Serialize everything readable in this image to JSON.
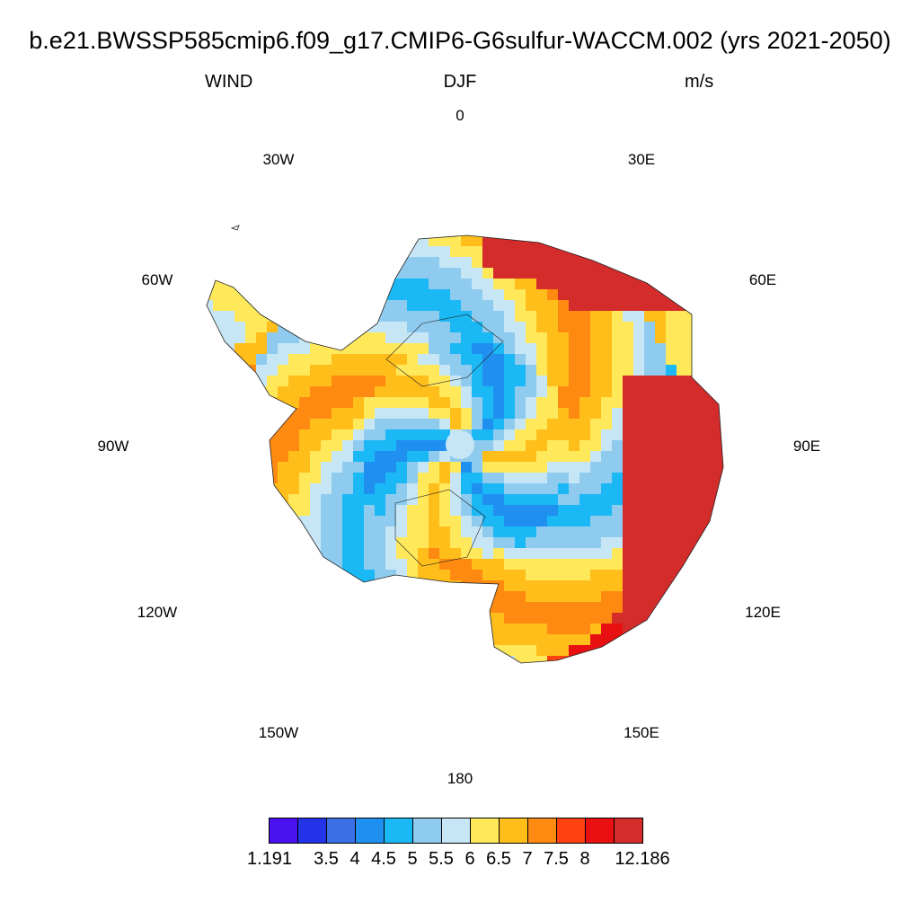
{
  "header": {
    "title": "b.e21.BWSSP585cmip6.f09_g17.CMIP6-G6sulfur-WACCM.002 (yrs 2021-2050)",
    "variable": "WIND",
    "season": "DJF",
    "units": "m/s"
  },
  "longitude_labels": [
    {
      "name": "lon-0",
      "text": "0",
      "deg": 0
    },
    {
      "name": "lon-30e",
      "text": "30E",
      "deg": 30
    },
    {
      "name": "lon-60e",
      "text": "60E",
      "deg": 60
    },
    {
      "name": "lon-90e",
      "text": "90E",
      "deg": 90
    },
    {
      "name": "lon-120e",
      "text": "120E",
      "deg": 120
    },
    {
      "name": "lon-150e",
      "text": "150E",
      "deg": 150
    },
    {
      "name": "lon-180",
      "text": "180",
      "deg": 180
    },
    {
      "name": "lon-150w",
      "text": "150W",
      "deg": 210
    },
    {
      "name": "lon-120w",
      "text": "120W",
      "deg": 240
    },
    {
      "name": "lon-90w",
      "text": "90W",
      "deg": 270
    },
    {
      "name": "lon-60w",
      "text": "60W",
      "deg": 300
    },
    {
      "name": "lon-30w",
      "text": "30W",
      "deg": 330
    }
  ],
  "colorbar": {
    "colors": [
      "#4a12f0",
      "#2233e8",
      "#3a6fe6",
      "#2090f0",
      "#1ab8f5",
      "#8ecbee",
      "#c6e6f6",
      "#ffe85a",
      "#ffbe1a",
      "#ff8a12",
      "#ff4010",
      "#e81010",
      "#d42b2b"
    ],
    "labels": [
      "1.191",
      "3.5",
      "4",
      "4.5",
      "5",
      "5.5",
      "6",
      "6.5",
      "7",
      "7.5",
      "8",
      "12.186"
    ]
  },
  "chart_data": {
    "type": "heatmap",
    "projection": "south polar stereographic",
    "variable": "WIND",
    "season": "DJF",
    "units": "m/s",
    "range": [
      1.191,
      12.186
    ],
    "contour_levels": [
      3.5,
      4,
      4.5,
      5,
      5.5,
      6,
      6.5,
      7,
      7.5,
      8
    ]
  }
}
